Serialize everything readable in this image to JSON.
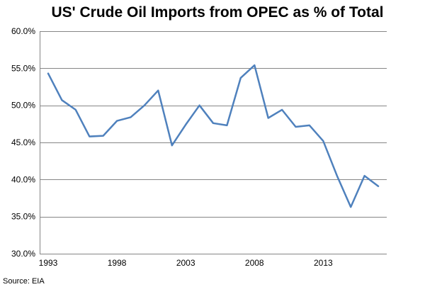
{
  "chart_data": {
    "type": "line",
    "title": "US' Crude Oil Imports from OPEC as % of Total",
    "xlabel": "",
    "ylabel": "",
    "x": [
      1993,
      1994,
      1995,
      1996,
      1997,
      1998,
      1999,
      2000,
      2001,
      2002,
      2003,
      2004,
      2005,
      2006,
      2007,
      2008,
      2009,
      2010,
      2011,
      2012,
      2013,
      2014,
      2015,
      2016,
      2017
    ],
    "series": [
      {
        "values": [
          54.3,
          50.7,
          49.4,
          45.8,
          45.9,
          47.9,
          48.4,
          50.0,
          52.0,
          44.6,
          47.4,
          50.0,
          47.6,
          47.3,
          53.7,
          55.4,
          48.3,
          49.4,
          47.1,
          47.3,
          45.2,
          40.5,
          36.3,
          40.5,
          39.1
        ],
        "color": "#4f81bd"
      }
    ],
    "ylim": [
      30,
      60
    ],
    "yticks": [
      "30.0%",
      "35.0%",
      "40.0%",
      "45.0%",
      "50.0%",
      "55.0%",
      "60.0%"
    ],
    "xticks": [
      "1993",
      "1998",
      "2003",
      "2008",
      "2013"
    ],
    "grid": "horizontal",
    "legend": "none",
    "source": "Source: EIA"
  }
}
